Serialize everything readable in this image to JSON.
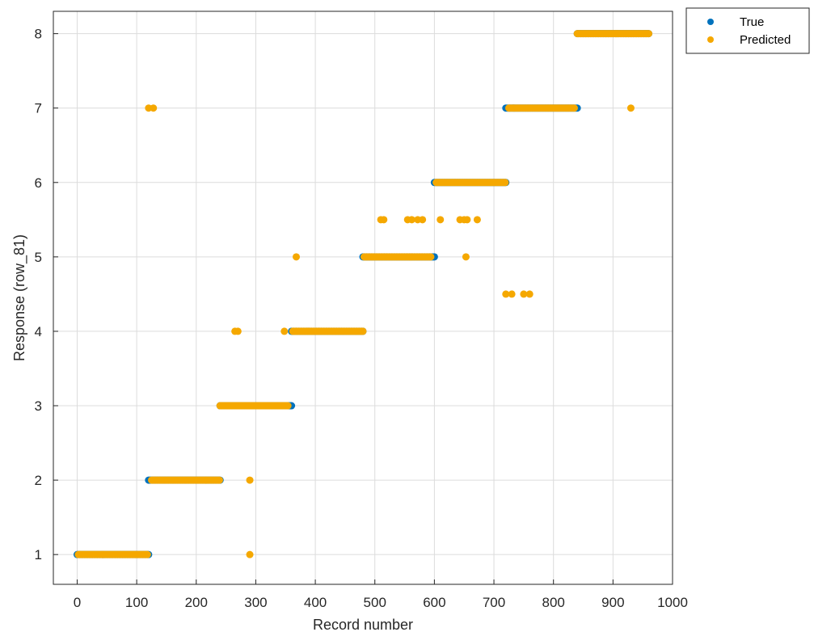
{
  "chart_data": {
    "type": "scatter",
    "title": "",
    "xlabel": "Record number",
    "ylabel": "Response (row_81)",
    "xlim": [
      -40,
      1000
    ],
    "ylim": [
      0.6,
      8.3
    ],
    "xticks": [
      "0",
      "100",
      "200",
      "300",
      "400",
      "500",
      "600",
      "700",
      "800",
      "900",
      "1000"
    ],
    "yticks": [
      "1",
      "2",
      "3",
      "4",
      "5",
      "6",
      "7",
      "8"
    ],
    "grid": true,
    "legend_position": "top-right-outside",
    "colors": {
      "True": "#0072bd",
      "Predicted": "#f5a800",
      "grid": "#dcdcdc",
      "axis": "#262626"
    },
    "series": [
      {
        "name": "True",
        "segments": [
          {
            "x_start": 0,
            "x_end": 120,
            "y": 1
          },
          {
            "x_start": 120,
            "x_end": 240,
            "y": 2
          },
          {
            "x_start": 240,
            "x_end": 360,
            "y": 3
          },
          {
            "x_start": 360,
            "x_end": 480,
            "y": 4
          },
          {
            "x_start": 480,
            "x_end": 600,
            "y": 5
          },
          {
            "x_start": 600,
            "x_end": 720,
            "y": 6
          },
          {
            "x_start": 720,
            "x_end": 840,
            "y": 7
          },
          {
            "x_start": 840,
            "x_end": 960,
            "y": 8
          }
        ]
      },
      {
        "name": "Predicted",
        "segments": [
          {
            "x_start": 2,
            "x_end": 118,
            "y": 1
          },
          {
            "x_start": 125,
            "x_end": 240,
            "y": 2
          },
          {
            "x_start": 240,
            "x_end": 355,
            "y": 3
          },
          {
            "x_start": 362,
            "x_end": 480,
            "y": 4
          },
          {
            "x_start": 482,
            "x_end": 595,
            "y": 5
          },
          {
            "x_start": 603,
            "x_end": 720,
            "y": 6
          },
          {
            "x_start": 725,
            "x_end": 835,
            "y": 7
          },
          {
            "x_start": 840,
            "x_end": 960,
            "y": 8
          }
        ],
        "points": [
          {
            "x": 120,
            "y": 7
          },
          {
            "x": 128,
            "y": 7
          },
          {
            "x": 290,
            "y": 1
          },
          {
            "x": 290,
            "y": 2
          },
          {
            "x": 265,
            "y": 4
          },
          {
            "x": 270,
            "y": 4
          },
          {
            "x": 348,
            "y": 4
          },
          {
            "x": 368,
            "y": 5
          },
          {
            "x": 510,
            "y": 5.5
          },
          {
            "x": 515,
            "y": 5.5
          },
          {
            "x": 555,
            "y": 5.5
          },
          {
            "x": 562,
            "y": 5.5
          },
          {
            "x": 572,
            "y": 5.5
          },
          {
            "x": 580,
            "y": 5.5
          },
          {
            "x": 610,
            "y": 5.5
          },
          {
            "x": 643,
            "y": 5.5
          },
          {
            "x": 650,
            "y": 5.5
          },
          {
            "x": 655,
            "y": 5.5
          },
          {
            "x": 672,
            "y": 5.5
          },
          {
            "x": 653,
            "y": 5
          },
          {
            "x": 720,
            "y": 4.5
          },
          {
            "x": 730,
            "y": 4.5
          },
          {
            "x": 750,
            "y": 4.5
          },
          {
            "x": 760,
            "y": 4.5
          },
          {
            "x": 930,
            "y": 7
          }
        ]
      }
    ]
  },
  "legend": {
    "items": [
      {
        "label": "True",
        "color": "#0072bd"
      },
      {
        "label": "Predicted",
        "color": "#f5a800"
      }
    ]
  }
}
